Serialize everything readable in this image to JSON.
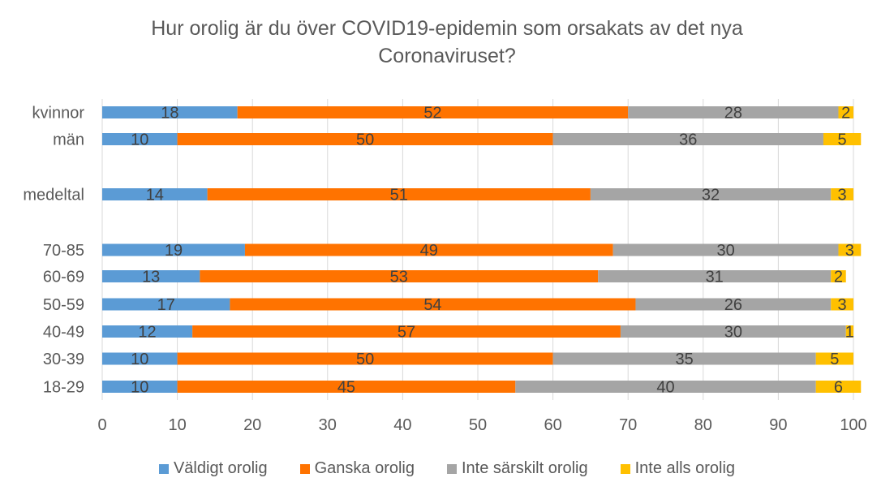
{
  "chart_data": {
    "type": "bar",
    "orientation": "horizontal",
    "stacked": true,
    "title": [
      "Hur orolig är du över COVID19-epidemin som orsakats av det nya",
      "Coronaviruset?"
    ],
    "categories": [
      "kvinnor",
      "män",
      "",
      "medeltal",
      "",
      "70-85",
      "60-69",
      "50-59",
      "40-49",
      "30-39",
      "18-29"
    ],
    "series": [
      {
        "name": "Väldigt orolig",
        "color": "#5B9BD5",
        "values": [
          18,
          10,
          null,
          14,
          null,
          19,
          13,
          17,
          12,
          10,
          10
        ]
      },
      {
        "name": "Ganska orolig",
        "color": "#FF7300",
        "values": [
          52,
          50,
          null,
          51,
          null,
          49,
          53,
          54,
          57,
          50,
          45
        ]
      },
      {
        "name": "Inte särskilt orolig",
        "color": "#A5A5A5",
        "values": [
          28,
          36,
          null,
          32,
          null,
          30,
          31,
          26,
          30,
          35,
          40
        ]
      },
      {
        "name": "Inte alls orolig",
        "color": "#FFC000",
        "values": [
          2,
          5,
          null,
          3,
          null,
          3,
          2,
          3,
          1,
          5,
          6
        ]
      }
    ],
    "xlim": [
      0,
      100
    ],
    "xticks": [
      0,
      10,
      20,
      30,
      40,
      50,
      60,
      70,
      80,
      90,
      100
    ],
    "grid": "vertical",
    "legend_position": "bottom"
  }
}
